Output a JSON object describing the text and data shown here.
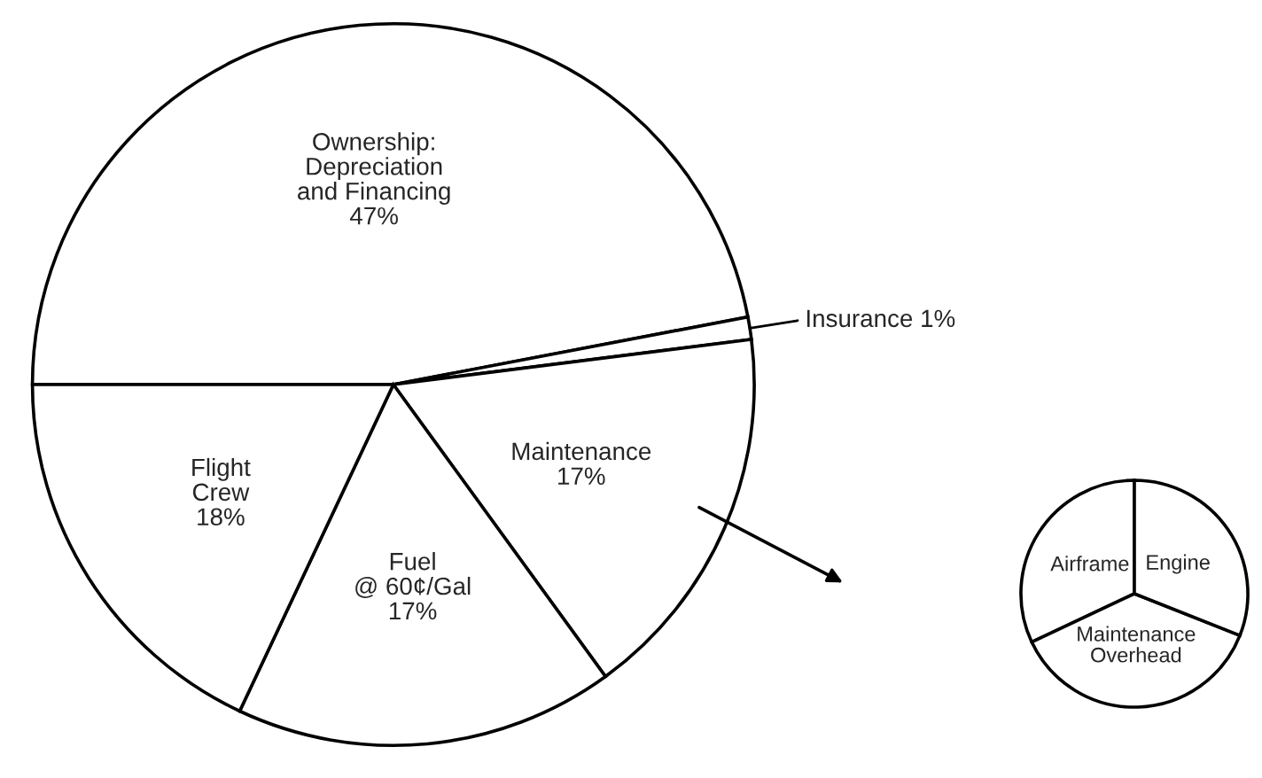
{
  "chart_data": [
    {
      "type": "pie",
      "categories": [
        "Ownership:\nDepreciation\nand Financing",
        "Insurance",
        "Maintenance",
        "Fuel\n@ 60¢/Gal",
        "Flight\nCrew"
      ],
      "values": [
        47,
        1,
        17,
        17,
        18
      ],
      "value_labels": [
        "47%",
        "1%",
        "17%",
        "17%",
        "18%"
      ],
      "colors": [
        "#ffffff",
        "#ffffff",
        "#ffffff",
        "#ffffff",
        "#ffffff"
      ]
    },
    {
      "type": "pie",
      "categories": [
        "Airframe",
        "Maintenance\nOverhead",
        "Engine"
      ],
      "values": [
        32,
        37,
        31
      ],
      "colors": [
        "#ffffff",
        "#ffffff",
        "#ffffff"
      ]
    }
  ]
}
